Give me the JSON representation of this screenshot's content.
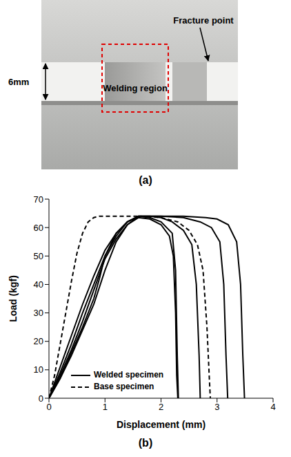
{
  "captions": [
    "(a)",
    "(b)"
  ],
  "photo": {
    "width_label": "6mm",
    "region_label": "Welding region",
    "fracture_label": "Fracture point"
  },
  "chart_data": {
    "type": "line",
    "x_label": "Displacement (mm)",
    "y_label": "Load (kgf)",
    "xlim": [
      0,
      4
    ],
    "xticks": [
      0,
      1,
      2,
      3,
      4
    ],
    "ylim": [
      0,
      70
    ],
    "yticks": [
      0,
      10,
      20,
      30,
      40,
      50,
      60,
      70
    ],
    "grid": false,
    "legend": "lower left",
    "series": [
      {
        "name": "Welded specimen",
        "color": "#000000",
        "line_style": "solid",
        "x": [
          0,
          0.2,
          0.4,
          0.6,
          0.8,
          1.0,
          1.2,
          1.4,
          1.6,
          1.8,
          2.0,
          2.15,
          2.22,
          2.26,
          2.28,
          2.3
        ],
        "values": [
          0,
          8,
          17,
          27,
          38,
          49,
          56,
          61,
          63.5,
          63,
          61,
          57,
          50,
          30,
          8,
          0
        ]
      },
      {
        "name": "Welded specimen",
        "color": "#000000",
        "line_style": "solid",
        "x": [
          0,
          0.2,
          0.4,
          0.6,
          0.8,
          0.9,
          1.0,
          1.2,
          1.4,
          1.6,
          1.8,
          2.0,
          2.2,
          2.26,
          2.29,
          2.31
        ],
        "values": [
          0,
          7,
          16,
          25,
          35,
          42,
          50,
          58,
          62,
          64,
          63.5,
          62,
          58,
          45,
          15,
          0
        ]
      },
      {
        "name": "Welded specimen",
        "color": "#000000",
        "line_style": "solid",
        "x": [
          0,
          0.2,
          0.4,
          0.6,
          0.8,
          1.0,
          1.2,
          1.4,
          1.6,
          1.8,
          2.0,
          2.2,
          2.4,
          2.55,
          2.63,
          2.68,
          2.7
        ],
        "values": [
          0,
          7,
          15,
          24,
          33,
          45,
          55,
          61,
          64,
          64,
          63.5,
          62,
          59,
          54,
          40,
          15,
          0
        ]
      },
      {
        "name": "Welded specimen",
        "color": "#000000",
        "line_style": "solid",
        "x": [
          0,
          0.2,
          0.4,
          0.6,
          0.8,
          1.0,
          1.2,
          1.4,
          1.6,
          2.0,
          2.4,
          2.7,
          2.9,
          3.05,
          3.12,
          3.16,
          3.19
        ],
        "values": [
          0,
          11,
          22,
          33,
          43,
          52,
          58,
          62,
          64,
          64,
          63.5,
          62,
          60,
          55,
          40,
          15,
          0
        ]
      },
      {
        "name": "Welded specimen",
        "color": "#000000",
        "line_style": "solid",
        "x": [
          0,
          0.2,
          0.4,
          0.6,
          0.8,
          1.0,
          1.2,
          1.4,
          1.6,
          2.0,
          2.4,
          2.8,
          3.0,
          3.2,
          3.35,
          3.42,
          3.46,
          3.49
        ],
        "values": [
          0,
          9,
          19,
          30,
          40,
          50,
          57,
          62,
          64,
          64,
          64,
          63.5,
          63,
          61,
          55,
          40,
          15,
          0
        ]
      },
      {
        "name": "Base specimen",
        "color": "#000000",
        "line_style": "dashed",
        "x": [
          0,
          0.1,
          0.2,
          0.3,
          0.4,
          0.5,
          0.6,
          0.7,
          0.8,
          0.9,
          1.0,
          1.3,
          1.6,
          2.0,
          2.3,
          2.5,
          2.65,
          2.75,
          2.82,
          2.86,
          2.88
        ],
        "values": [
          0,
          8,
          19,
          30,
          41,
          51,
          58,
          62,
          63.5,
          64,
          64,
          64,
          64,
          63.5,
          62,
          59,
          54,
          45,
          25,
          8,
          0
        ]
      }
    ]
  }
}
